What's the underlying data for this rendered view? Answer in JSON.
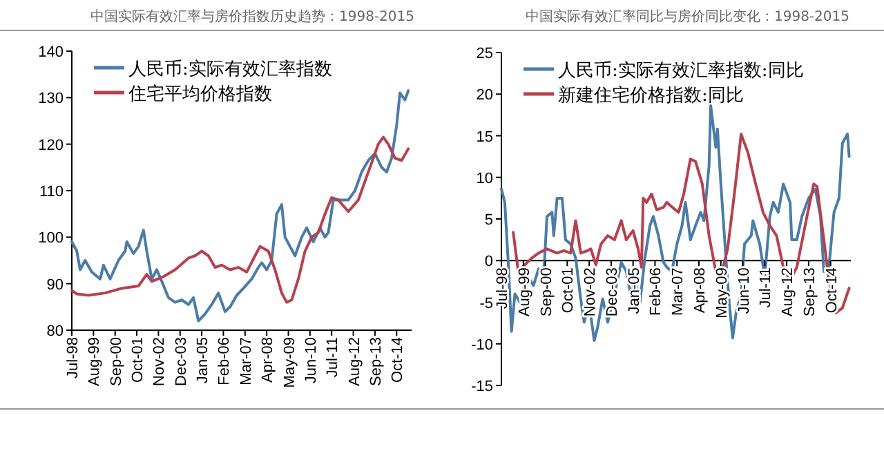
{
  "chart_data": [
    {
      "type": "line",
      "title": "中国实际有效汇率与房价指数历史趋势：1998-2015",
      "legend": "top left",
      "xlim": [
        "1998-07",
        "2015-07"
      ],
      "ylim": [
        80,
        140
      ],
      "yticks": [
        80,
        90,
        100,
        110,
        120,
        130,
        140
      ],
      "xticks": [
        {
          "value": "1998-07",
          "label": "Jul-98"
        },
        {
          "value": "1999-08",
          "label": "Aug-99"
        },
        {
          "value": "2000-09",
          "label": "Sep-00"
        },
        {
          "value": "2001-10",
          "label": "Oct-01"
        },
        {
          "value": "2002-11",
          "label": "Nov-02"
        },
        {
          "value": "2003-12",
          "label": "Dec-03"
        },
        {
          "value": "2005-01",
          "label": "Jan-05"
        },
        {
          "value": "2006-02",
          "label": "Feb-06"
        },
        {
          "value": "2007-03",
          "label": "Mar-07"
        },
        {
          "value": "2008-04",
          "label": "Apr-08"
        },
        {
          "value": "2009-05",
          "label": "May-09"
        },
        {
          "value": "2010-06",
          "label": "Jun-10"
        },
        {
          "value": "2011-07",
          "label": "Jul-11"
        },
        {
          "value": "2012-08",
          "label": "Aug-12"
        },
        {
          "value": "2013-09",
          "label": "Sep-13"
        },
        {
          "value": "2014-10",
          "label": "Oct-14"
        }
      ],
      "series": [
        {
          "name": "人民币:实际有效汇率指数",
          "color": "#4a7ca8",
          "x": [
            "1998-07",
            "1998-10",
            "1998-12",
            "1999-03",
            "1999-07",
            "1999-12",
            "2000-02",
            "2000-06",
            "2000-11",
            "2001-03",
            "2001-04",
            "2001-08",
            "2001-11",
            "2002-02",
            "2002-04",
            "2002-07",
            "2002-10",
            "2003-01",
            "2003-05",
            "2003-09",
            "2004-01",
            "2004-05",
            "2004-08",
            "2004-11",
            "2005-03",
            "2005-07",
            "2005-11",
            "2006-03",
            "2006-06",
            "2006-10",
            "2007-02",
            "2007-07",
            "2007-11",
            "2008-01",
            "2008-04",
            "2008-07",
            "2008-10",
            "2009-01",
            "2009-03",
            "2009-06",
            "2009-09",
            "2010-01",
            "2010-04",
            "2010-08",
            "2010-12",
            "2011-03",
            "2011-05",
            "2011-08",
            "2011-12",
            "2012-05",
            "2012-09",
            "2013-01",
            "2013-05",
            "2013-09",
            "2014-01",
            "2014-04",
            "2014-07",
            "2014-10",
            "2014-12",
            "2015-03",
            "2015-05"
          ],
          "values": [
            99,
            97,
            93,
            95,
            92.5,
            91,
            94,
            91,
            95,
            97,
            99,
            96.5,
            98,
            101.5,
            97,
            91,
            93,
            90.5,
            87,
            86,
            86.5,
            85.5,
            87,
            82,
            83.5,
            85.5,
            88,
            84,
            85,
            87.5,
            89,
            91,
            93.5,
            94.5,
            93,
            95,
            105,
            107,
            100,
            98,
            96,
            100,
            102,
            99,
            102,
            100,
            101,
            108,
            108,
            108,
            110,
            114,
            116.5,
            118,
            115,
            114,
            117,
            124,
            131,
            129.5,
            131.5
          ]
        },
        {
          "name": "住宅平均价格指数",
          "color": "#b8404e",
          "x": [
            "1998-07",
            "1998-10",
            "1999-05",
            "2000-03",
            "2001-01",
            "2001-11",
            "2002-04",
            "2002-07",
            "2003-02",
            "2003-09",
            "2004-05",
            "2004-09",
            "2005-01",
            "2005-05",
            "2005-09",
            "2006-01",
            "2006-06",
            "2006-11",
            "2007-04",
            "2007-09",
            "2007-12",
            "2008-05",
            "2008-09",
            "2009-01",
            "2009-04",
            "2009-07",
            "2009-11",
            "2010-03",
            "2010-07",
            "2010-11",
            "2011-03",
            "2011-07",
            "2011-11",
            "2012-05",
            "2012-11",
            "2013-05",
            "2013-11",
            "2014-02",
            "2014-05",
            "2014-09",
            "2015-01",
            "2015-05"
          ],
          "values": [
            88.5,
            87.8,
            87.5,
            88,
            89,
            89.5,
            92,
            90.5,
            91.5,
            93,
            95.5,
            96,
            97,
            96,
            93.5,
            94,
            93,
            93.5,
            92.5,
            96,
            98,
            97,
            93,
            88,
            86,
            86.5,
            91,
            97,
            100,
            101,
            105,
            108.5,
            108,
            105.5,
            108,
            114,
            120,
            121.5,
            120,
            117,
            116.5,
            119
          ]
        }
      ]
    },
    {
      "type": "line",
      "title": "中国实际有效汇率同比与房价同比变化：1998-2015",
      "legend": "top left",
      "xlim": [
        "1998-07",
        "2015-10"
      ],
      "ylim": [
        -15,
        25
      ],
      "yticks": [
        -15,
        -10,
        -5,
        0,
        5,
        10,
        15,
        20,
        25
      ],
      "xticks": [
        {
          "value": "1998-07",
          "label": "Jul-98"
        },
        {
          "value": "1999-08",
          "label": "Aug-99"
        },
        {
          "value": "2000-09",
          "label": "Sep-00"
        },
        {
          "value": "2001-10",
          "label": "Oct-01"
        },
        {
          "value": "2002-11",
          "label": "Nov-02"
        },
        {
          "value": "2003-12",
          "label": "Dec-03"
        },
        {
          "value": "2005-01",
          "label": "Jan-05"
        },
        {
          "value": "2006-02",
          "label": "Feb-06"
        },
        {
          "value": "2007-03",
          "label": "Mar-07"
        },
        {
          "value": "2008-04",
          "label": "Apr-08"
        },
        {
          "value": "2009-05",
          "label": "May-09"
        },
        {
          "value": "2010-06",
          "label": "Jun-10"
        },
        {
          "value": "2011-07",
          "label": "Jul-11"
        },
        {
          "value": "2012-08",
          "label": "Aug-12"
        },
        {
          "value": "2013-09",
          "label": "Sep-13"
        },
        {
          "value": "2014-10",
          "label": "Oct-14"
        }
      ],
      "series": [
        {
          "name": "人民币:实际有效汇率指数:同比",
          "color": "#4a7ca8",
          "x": [
            "1998-07",
            "1998-09",
            "1998-11",
            "1999-01",
            "1999-03",
            "1999-06",
            "1999-09",
            "1999-11",
            "2000-02",
            "2000-05",
            "2000-08",
            "2000-10",
            "2001-01",
            "2001-02",
            "2001-04",
            "2001-07",
            "2001-09",
            "2001-12",
            "2002-03",
            "2002-06",
            "2002-08",
            "2002-11",
            "2003-02",
            "2003-04",
            "2003-07",
            "2003-10",
            "2004-02",
            "2004-06",
            "2004-09",
            "2004-12",
            "2005-02",
            "2005-05",
            "2005-08",
            "2005-11",
            "2006-01",
            "2006-04",
            "2006-07",
            "2006-09",
            "2006-12",
            "2007-03",
            "2007-06",
            "2007-08",
            "2007-11",
            "2008-02",
            "2008-05",
            "2008-07",
            "2008-10",
            "2008-11",
            "2009-02",
            "2009-03",
            "2009-05",
            "2009-08",
            "2009-10",
            "2009-12",
            "2010-02",
            "2010-05",
            "2010-07",
            "2010-11",
            "2010-12",
            "2011-04",
            "2011-07",
            "2011-10",
            "2011-12",
            "2012-03",
            "2012-06",
            "2012-10",
            "2012-11",
            "2013-02",
            "2013-05",
            "2013-09",
            "2014-01",
            "2014-04",
            "2014-06",
            "2014-09",
            "2014-12",
            "2015-03",
            "2015-05",
            "2015-08",
            "2015-09"
          ],
          "values": [
            8.6,
            7,
            0,
            -8.5,
            -4,
            -5,
            -2.5,
            -2,
            -3,
            -1,
            -2,
            5.3,
            5.8,
            3,
            7.5,
            7.5,
            2.5,
            2,
            0.3,
            -4.6,
            -7.4,
            -5.2,
            -9.6,
            -8,
            -4.6,
            -7.4,
            -4,
            -0.2,
            -1.3,
            -4.6,
            -1.9,
            -5.2,
            0.3,
            4.2,
            5.3,
            3,
            -0.2,
            -0.8,
            -1.3,
            2,
            4.2,
            7,
            2.5,
            4.2,
            5.8,
            4.8,
            11.4,
            18.6,
            13.6,
            15.8,
            9.2,
            0.3,
            -5.2,
            -9.3,
            -6.3,
            -4,
            2,
            3,
            4.8,
            2,
            -1.9,
            5.3,
            7,
            5.8,
            9.2,
            7,
            2.5,
            2.5,
            5.3,
            7.5,
            8.6,
            5.3,
            -1.3,
            -0.8,
            5.8,
            7.5,
            14.1,
            15.2,
            12.5
          ]
        },
        {
          "name": "新建住宅价格指数:同比",
          "color": "#b8404e",
          "x": [
            "1999-02",
            "1999-05",
            "1999-09",
            "2000-01",
            "2000-05",
            "2000-10",
            "2001-04",
            "2001-08",
            "2001-12",
            "2002-03",
            "2002-06",
            "2002-10",
            "2002-12",
            "2003-03",
            "2003-06",
            "2003-10",
            "2004-02",
            "2004-06",
            "2004-09",
            "2005-01",
            "2005-04",
            "2005-06",
            "2005-07",
            "2005-09",
            "2005-12",
            "2006-03",
            "2006-07",
            "2006-09",
            "2007-02",
            "2007-04",
            "2007-07",
            "2007-11",
            "2008-02",
            "2008-06",
            "2008-10",
            "2009-02",
            "2009-05",
            "2009-09",
            "2010-01",
            "2010-05",
            "2010-09",
            "2011-01",
            "2011-06",
            "2011-10",
            "2012-02",
            "2012-06",
            "2012-10",
            "2013-02",
            "2013-08",
            "2013-12",
            "2014-02",
            "2014-06",
            "2014-09",
            "2015-01",
            "2015-05",
            "2015-09"
          ],
          "values": [
            3.4,
            -1.3,
            -0.5,
            0.3,
            0.9,
            1.4,
            0.9,
            1.2,
            0.9,
            4.8,
            0.9,
            1.2,
            1.4,
            -0.5,
            2,
            3,
            2.5,
            4.8,
            2.5,
            3.6,
            1.4,
            -0.8,
            7.5,
            7,
            8,
            6.1,
            6.4,
            7,
            6.1,
            5.8,
            8,
            12.2,
            11.9,
            9.2,
            3,
            -1.3,
            -1.9,
            1.4,
            8,
            15.2,
            13,
            9.7,
            5.8,
            4.2,
            3,
            -0.8,
            -2.4,
            -0.8,
            5.3,
            9.2,
            8.9,
            2.5,
            -2.4,
            -6.3,
            -5.7,
            -3.3
          ]
        }
      ]
    }
  ]
}
